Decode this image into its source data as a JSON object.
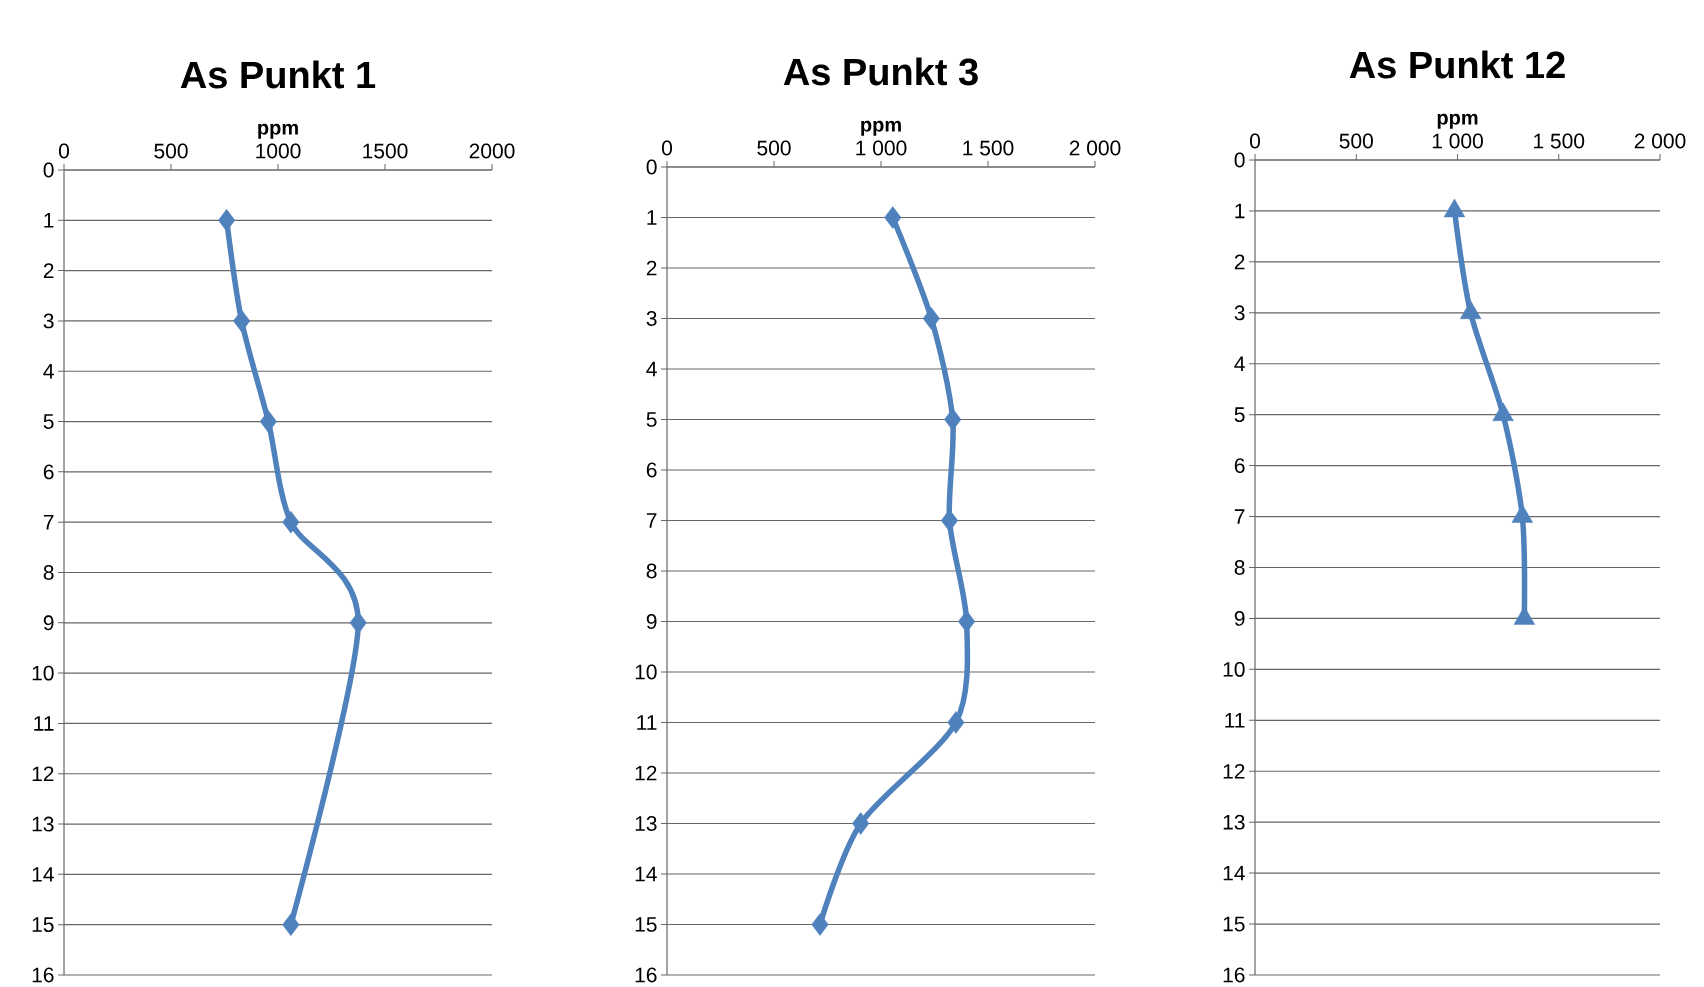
{
  "chart_data": [
    {
      "type": "line",
      "title": "As  Punkt 1",
      "xlabel": "ppm",
      "xlim": [
        0,
        2000
      ],
      "xticks": [
        0,
        500,
        1000,
        1500,
        2000
      ],
      "ylim": [
        16,
        0
      ],
      "yticks": [
        0,
        1,
        2,
        3,
        4,
        5,
        6,
        7,
        8,
        9,
        10,
        11,
        12,
        13,
        14,
        15,
        16
      ],
      "grid": "y",
      "marker": "diamond",
      "color": "#4f81bd",
      "x": [
        760,
        830,
        955,
        1060,
        1375,
        1060
      ],
      "values": [
        1,
        3,
        5,
        7,
        9,
        15
      ]
    },
    {
      "type": "line",
      "title": "As Punkt 3",
      "xlabel": "ppm",
      "xlim": [
        0,
        2000
      ],
      "xticks": [
        0,
        500,
        {
          "value": 1000,
          "label": "1 000"
        },
        {
          "value": 1500,
          "label": "1 500"
        },
        {
          "value": 2000,
          "label": "2 000"
        }
      ],
      "ylim": [
        16,
        0
      ],
      "yticks": [
        0,
        1,
        2,
        3,
        4,
        5,
        6,
        7,
        8,
        9,
        10,
        11,
        12,
        13,
        14,
        15,
        16
      ],
      "grid": "y",
      "marker": "diamond",
      "color": "#4f81bd",
      "x": [
        1055,
        1235,
        1335,
        1320,
        1400,
        1350,
        905,
        715
      ],
      "values": [
        1,
        3,
        5,
        7,
        9,
        11,
        13,
        15
      ]
    },
    {
      "type": "line",
      "title": "As Punkt 12",
      "xlabel": "ppm",
      "xlim": [
        0,
        2000
      ],
      "xticks": [
        0,
        500,
        {
          "value": 1000,
          "label": "1 000"
        },
        {
          "value": 1500,
          "label": "1 500"
        },
        {
          "value": 2000,
          "label": "2 000"
        }
      ],
      "ylim": [
        16,
        0
      ],
      "yticks": [
        0,
        1,
        2,
        3,
        4,
        5,
        6,
        7,
        8,
        9,
        10,
        11,
        12,
        13,
        14,
        15,
        16
      ],
      "grid": "y",
      "marker": "triangle",
      "color": "#4f81bd",
      "x": [
        985,
        1065,
        1225,
        1320,
        1330
      ],
      "values": [
        1,
        3,
        5,
        7,
        9
      ]
    }
  ]
}
